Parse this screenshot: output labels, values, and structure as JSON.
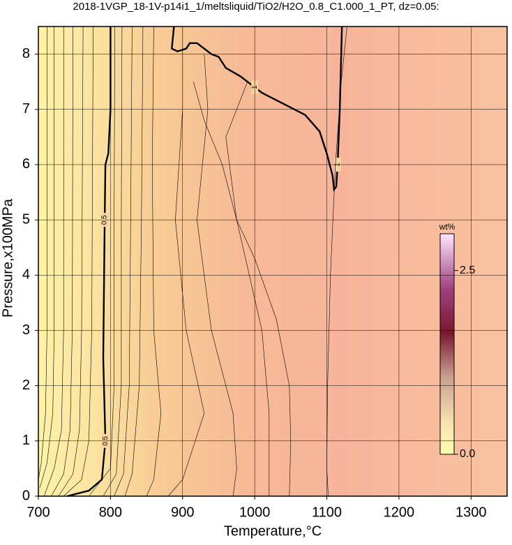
{
  "chart_data": {
    "type": "contour",
    "title": "2018-1VGP_18-1V-p14i1_1/meltsliquid/TiO2/H2O_0.8_C1.000_1_PT, dz=0.05:",
    "x_label": "Temperature,°C",
    "y_label": "Pressure,x100MPa",
    "xlim": [
      700,
      1350
    ],
    "xticks": [
      700,
      800,
      900,
      1000,
      1100,
      1200,
      1300
    ],
    "ylim": [
      0,
      8.5
    ],
    "yticks": [
      0,
      1,
      2,
      3,
      4,
      5,
      6,
      7,
      8
    ],
    "grid": true,
    "bold_levels": [
      0.5,
      1
    ],
    "contours": [
      {
        "level": 0.2,
        "x": [
          712,
          712,
          710,
          704,
          700
        ],
        "y": [
          8.5,
          3,
          1.5,
          0.6,
          0.3
        ]
      },
      {
        "level": 0.25,
        "x": [
          722,
          722,
          720,
          712,
          702
        ],
        "y": [
          8.5,
          3,
          1.5,
          0.6,
          0.15
        ]
      },
      {
        "level": 0.3,
        "x": [
          735,
          735,
          732,
          722,
          708
        ],
        "y": [
          8.5,
          3,
          1.2,
          0.5,
          0
        ]
      },
      {
        "level": 0.35,
        "x": [
          748,
          747,
          744,
          735,
          718
        ],
        "y": [
          8.5,
          3,
          1.2,
          0.4,
          0
        ]
      },
      {
        "level": 0.4,
        "x": [
          762,
          760,
          757,
          748,
          728
        ],
        "y": [
          8.5,
          3,
          1.2,
          0.4,
          0
        ]
      },
      {
        "level": 0.45,
        "x": [
          776,
          774,
          770,
          760,
          735
        ],
        "y": [
          8.5,
          3,
          1,
          0.3,
          0
        ]
      },
      {
        "level": 0.5,
        "x": [
          740,
          770,
          788,
          793,
          790,
          792,
          793,
          797,
          800,
          800
        ],
        "y": [
          0,
          0.1,
          0.3,
          1,
          2.5,
          5,
          6,
          6.2,
          7,
          8.5
        ]
      },
      {
        "level": 0.55,
        "x": [
          806,
          805,
          805,
          800,
          770
        ],
        "y": [
          8.5,
          5,
          2,
          0.5,
          0
        ]
      },
      {
        "level": 0.6,
        "x": [
          816,
          815,
          815,
          808,
          790
        ],
        "y": [
          8.5,
          5,
          2,
          0.4,
          0
        ]
      },
      {
        "level": 0.65,
        "x": [
          830,
          828,
          826,
          818,
          805
        ],
        "y": [
          8.5,
          5,
          2,
          0.4,
          0
        ]
      },
      {
        "level": 0.7,
        "x": [
          845,
          843,
          840,
          830,
          820
        ],
        "y": [
          8.5,
          5,
          2,
          0.4,
          0
        ]
      },
      {
        "level": 0.75,
        "x": [
          860,
          858,
          860,
          870,
          860,
          850
        ],
        "y": [
          8.5,
          6,
          3,
          1.5,
          0.3,
          0
        ]
      },
      {
        "level": 0.8,
        "x": [
          900,
          900,
          890,
          905,
          930,
          900,
          880
        ],
        "y": [
          8.5,
          7,
          5,
          3,
          1.5,
          0.3,
          0
        ]
      },
      {
        "level": 0.85,
        "x": [
          930,
          935,
          920,
          940,
          970,
          975,
          970
        ],
        "y": [
          8,
          7,
          5,
          3,
          1.5,
          0.5,
          0
        ]
      },
      {
        "level": 0.9,
        "x": [
          990,
          960,
          975,
          1010,
          1020,
          1020
        ],
        "y": [
          7.5,
          6.5,
          5,
          3,
          1.5,
          0
        ]
      },
      {
        "level": 0.95,
        "x": [
          1048,
          1050,
          1048,
          1030,
          1000,
          975,
          955,
          930,
          915
        ],
        "y": [
          0,
          1,
          2,
          3.2,
          4.3,
          5,
          6,
          6.8,
          7.5
        ]
      },
      {
        "level": 1,
        "x": [
          888,
          885,
          893,
          905,
          910,
          920,
          930,
          940,
          950,
          960,
          980,
          1000,
          1010,
          1040,
          1070,
          1090,
          1100,
          1108,
          1110,
          1113,
          1115,
          1118,
          1121
        ],
        "y": [
          8.5,
          8.1,
          8.05,
          8.1,
          8.2,
          8.2,
          8.1,
          8.0,
          7.95,
          7.75,
          7.6,
          7.4,
          7.3,
          7.1,
          6.9,
          6.6,
          6.2,
          5.8,
          5.55,
          5.6,
          6.0,
          7,
          8.5
        ]
      },
      {
        "level": 1.05,
        "x": [
          1102,
          1100,
          1101,
          1105,
          1112,
          1120,
          1128
        ],
        "y": [
          0,
          0.5,
          2,
          4,
          6,
          7.5,
          8.5
        ]
      }
    ],
    "colorbar": {
      "label": "wt%",
      "lim": [
        0,
        3.0
      ],
      "ticks": [
        {
          "value": 0,
          "label": "0.0"
        },
        2.5
      ]
    }
  }
}
